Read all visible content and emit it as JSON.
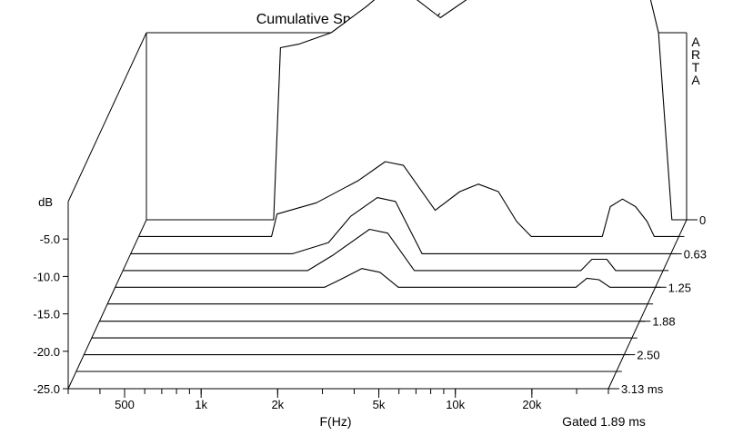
{
  "chart_data": {
    "type": "waterfall",
    "title": "Cumulative Spectral Decay (smoothed 1/3 octave)",
    "watermark": "ARTA",
    "xlabel": "F(Hz)",
    "ylabel": "dB",
    "zlabel_unit": "ms",
    "gate_note": "Gated 1.89 ms",
    "x_scale": "log",
    "xlim": [
      300,
      40000
    ],
    "ylim": [
      -25,
      0
    ],
    "x_ticks": [
      "500",
      "1k",
      "2k",
      "5k",
      "10k",
      "20k"
    ],
    "y_ticks": [
      "-5.0",
      "-10.0",
      "-15.0",
      "-20.0",
      "-25.0"
    ],
    "time_ticks": [
      "0",
      "0.63",
      "1.25",
      "1.88",
      "2.50",
      "3.13 ms"
    ],
    "time_slices_ms": [
      0,
      0.31,
      0.63,
      0.94,
      1.25,
      1.56,
      1.88,
      2.19,
      2.5,
      2.81,
      3.13
    ],
    "series": [
      {
        "time_ms": 0,
        "points": [
          [
            300,
            -25
          ],
          [
            950,
            -25
          ],
          [
            1010,
            -2
          ],
          [
            1200,
            -1.5
          ],
          [
            1600,
            0
          ],
          [
            2200,
            3.5
          ],
          [
            2800,
            6.5
          ],
          [
            3300,
            5
          ],
          [
            4300,
            2
          ],
          [
            5500,
            4.5
          ],
          [
            7500,
            6.5
          ],
          [
            10000,
            6
          ],
          [
            13000,
            5
          ],
          [
            15000,
            4.8
          ],
          [
            18000,
            5
          ],
          [
            20000,
            6
          ],
          [
            23000,
            9
          ],
          [
            27000,
            8.5
          ],
          [
            31000,
            0
          ],
          [
            35000,
            -25
          ],
          [
            40000,
            -25
          ]
        ]
      },
      {
        "time_ms": 0.31,
        "points": [
          [
            300,
            -25
          ],
          [
            1000,
            -25
          ],
          [
            1050,
            -22
          ],
          [
            1500,
            -20.5
          ],
          [
            2200,
            -17.5
          ],
          [
            2800,
            -15
          ],
          [
            3300,
            -15.5
          ],
          [
            4400,
            -21.5
          ],
          [
            5500,
            -19
          ],
          [
            6500,
            -18
          ],
          [
            7800,
            -19
          ],
          [
            9200,
            -23
          ],
          [
            10500,
            -25
          ],
          [
            20000,
            -25
          ],
          [
            21500,
            -21
          ],
          [
            24000,
            -20
          ],
          [
            27000,
            -21
          ],
          [
            30000,
            -23
          ],
          [
            32000,
            -25
          ],
          [
            40000,
            -25
          ]
        ]
      },
      {
        "time_ms": 0.63,
        "points": [
          [
            300,
            -25
          ],
          [
            1300,
            -25
          ],
          [
            1800,
            -23.5
          ],
          [
            2200,
            -20
          ],
          [
            2800,
            -17.5
          ],
          [
            3300,
            -18
          ],
          [
            4200,
            -25
          ],
          [
            40000,
            -25
          ]
        ]
      },
      {
        "time_ms": 0.94,
        "points": [
          [
            300,
            -25
          ],
          [
            1600,
            -25
          ],
          [
            2000,
            -23
          ],
          [
            2800,
            -19.5
          ],
          [
            3300,
            -20
          ],
          [
            4200,
            -25
          ],
          [
            19000,
            -25
          ],
          [
            21000,
            -23.5
          ],
          [
            24000,
            -23.5
          ],
          [
            26000,
            -25
          ],
          [
            40000,
            -25
          ]
        ]
      },
      {
        "time_ms": 1.25,
        "points": [
          [
            300,
            -25
          ],
          [
            2000,
            -25
          ],
          [
            2300,
            -24
          ],
          [
            2800,
            -22.5
          ],
          [
            3300,
            -23
          ],
          [
            3900,
            -25
          ],
          [
            19500,
            -25
          ],
          [
            21500,
            -23.8
          ],
          [
            24000,
            -24
          ],
          [
            26500,
            -25
          ],
          [
            40000,
            -25
          ]
        ]
      },
      {
        "time_ms": 1.56,
        "points": [
          [
            300,
            -25
          ],
          [
            40000,
            -25
          ]
        ]
      },
      {
        "time_ms": 1.88,
        "points": [
          [
            300,
            -25
          ],
          [
            40000,
            -25
          ]
        ]
      },
      {
        "time_ms": 2.19,
        "points": [
          [
            300,
            -25
          ],
          [
            40000,
            -25
          ]
        ]
      },
      {
        "time_ms": 2.5,
        "points": [
          [
            300,
            -25
          ],
          [
            40000,
            -25
          ]
        ]
      },
      {
        "time_ms": 2.81,
        "points": [
          [
            300,
            -25
          ],
          [
            40000,
            -25
          ]
        ]
      },
      {
        "time_ms": 3.13,
        "points": [
          [
            300,
            -25
          ],
          [
            40000,
            -25
          ]
        ]
      }
    ]
  }
}
